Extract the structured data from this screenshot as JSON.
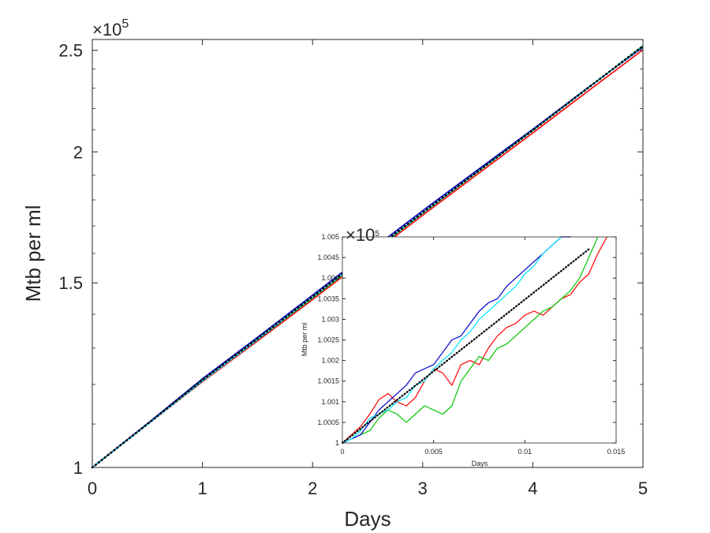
{
  "chart_data": [
    {
      "type": "line",
      "xlabel": "Days",
      "ylabel": "Mtb per ml",
      "xlim": [
        0,
        5
      ],
      "ylim": [
        100000,
        256000
      ],
      "y_scale": "log",
      "y_exponent_label": "×10",
      "y_exponent_power": "5",
      "xticks": [
        0,
        1,
        2,
        3,
        4,
        5
      ],
      "xtick_labels": [
        "0",
        "1",
        "2",
        "3",
        "4",
        "5"
      ],
      "yticks": [
        100000,
        150000,
        200000,
        250000
      ],
      "ytick_labels": [
        "1",
        "1.5",
        "2",
        "2.5"
      ],
      "grid": false,
      "series": [
        {
          "color": "#ff0000",
          "style": "solid",
          "x": [
            0,
            0.5,
            1,
            1.5,
            2,
            2.5,
            3,
            3.5,
            4,
            4.5,
            5
          ],
          "y": [
            100000,
            109900,
            120700,
            132000,
            144600,
            158600,
            174000,
            190500,
            208500,
            228500,
            250300
          ]
        },
        {
          "color": "#00c800",
          "style": "solid",
          "x": [
            0,
            0.5,
            1,
            1.5,
            2,
            2.5,
            3,
            3.5,
            4,
            4.5,
            5
          ],
          "y": [
            100000,
            110000,
            121000,
            132400,
            145100,
            159200,
            174700,
            191400,
            209600,
            230000,
            252500
          ]
        },
        {
          "color": "#0000cc",
          "style": "solid",
          "x": [
            0,
            0.5,
            1,
            1.5,
            2,
            2.5,
            3,
            3.5,
            4,
            4.5,
            5
          ],
          "y": [
            100000,
            110100,
            121500,
            133100,
            146000,
            160300,
            175800,
            192300,
            210200,
            230300,
            251700
          ]
        },
        {
          "color": "#00e5ff",
          "style": "solid",
          "x": [
            0,
            0.5,
            1,
            1.5,
            2,
            2.5,
            3,
            3.5,
            4,
            4.5,
            5
          ],
          "y": [
            100000,
            109900,
            120900,
            132400,
            145300,
            159400,
            174800,
            191500,
            209700,
            230000,
            252200
          ]
        },
        {
          "color": "#000000",
          "style": "dotted",
          "x": [
            0,
            0.5,
            1,
            1.5,
            2,
            2.5,
            3,
            3.5,
            4,
            4.5,
            5
          ],
          "y": [
            100000,
            110000,
            121200,
            132700,
            145500,
            159600,
            175000,
            191600,
            209800,
            230100,
            252300
          ]
        }
      ]
    },
    {
      "type": "line",
      "xlabel": "Days",
      "ylabel": "Mtb per ml",
      "xlim": [
        0,
        0.015
      ],
      "ylim": [
        100000,
        100500
      ],
      "y_exponent_label": "×10",
      "y_exponent_power": "5",
      "xticks": [
        0,
        0.005,
        0.01,
        0.015
      ],
      "xtick_labels": [
        "0",
        "0.005",
        "0.01",
        "0.015"
      ],
      "yticks": [
        100000,
        100050,
        100100,
        100150,
        100200,
        100250,
        100300,
        100350,
        100400,
        100450,
        100500
      ],
      "ytick_labels": [
        "1",
        "1.0005",
        "1.001",
        "1.0015",
        "1.002",
        "1.0025",
        "1.003",
        "1.0035",
        "1.004",
        "1.0045",
        "1.005"
      ],
      "grid": false,
      "series": [
        {
          "color": "#ff0000",
          "style": "solid",
          "x": [
            0,
            0.0005,
            0.001,
            0.0015,
            0.002,
            0.0025,
            0.003,
            0.0035,
            0.004,
            0.0045,
            0.005,
            0.0055,
            0.006,
            0.0065,
            0.007,
            0.0075,
            0.008,
            0.0085,
            0.009,
            0.0095,
            0.01,
            0.0105,
            0.011,
            0.0115,
            0.012,
            0.0125,
            0.013,
            0.0135,
            0.014,
            0.0145
          ],
          "y": [
            100000,
            100020,
            100040,
            100070,
            100105,
            100120,
            100100,
            100090,
            100110,
            100150,
            100180,
            100170,
            100140,
            100190,
            100200,
            100190,
            100230,
            100260,
            100280,
            100290,
            100310,
            100320,
            100310,
            100330,
            100350,
            100360,
            100390,
            100410,
            100460,
            100520
          ]
        },
        {
          "color": "#00c800",
          "style": "solid",
          "x": [
            0,
            0.0005,
            0.001,
            0.0015,
            0.002,
            0.0025,
            0.003,
            0.0035,
            0.004,
            0.0045,
            0.005,
            0.0055,
            0.006,
            0.0065,
            0.007,
            0.0075,
            0.008,
            0.0085,
            0.009,
            0.0095,
            0.01,
            0.0105,
            0.011,
            0.0115,
            0.012,
            0.0125,
            0.013,
            0.0135,
            0.014
          ],
          "y": [
            100000,
            100010,
            100020,
            100030,
            100060,
            100080,
            100070,
            100050,
            100070,
            100090,
            100080,
            100070,
            100090,
            100150,
            100180,
            100210,
            100200,
            100230,
            100240,
            100260,
            100280,
            100300,
            100320,
            100330,
            100350,
            100370,
            100400,
            100450,
            100520
          ]
        },
        {
          "color": "#0000cc",
          "style": "solid",
          "x": [
            0,
            0.0005,
            0.001,
            0.0015,
            0.002,
            0.0025,
            0.003,
            0.0035,
            0.004,
            0.0045,
            0.005,
            0.0055,
            0.006,
            0.0065,
            0.007,
            0.0075,
            0.008,
            0.0085,
            0.009,
            0.0095,
            0.01,
            0.0105,
            0.011,
            0.0115,
            0.012,
            0.0125
          ],
          "y": [
            100000,
            100010,
            100020,
            100050,
            100080,
            100100,
            100120,
            100140,
            100170,
            100180,
            100190,
            100220,
            100250,
            100260,
            100290,
            100320,
            100340,
            100350,
            100380,
            100400,
            100420,
            100440,
            100460,
            100480,
            100500,
            100520
          ]
        },
        {
          "color": "#00e5ff",
          "style": "solid",
          "x": [
            0,
            0.0005,
            0.001,
            0.0015,
            0.002,
            0.0025,
            0.003,
            0.0035,
            0.004,
            0.0045,
            0.005,
            0.0055,
            0.006,
            0.0065,
            0.007,
            0.0075,
            0.008,
            0.0085,
            0.009,
            0.0095,
            0.01,
            0.0105,
            0.011,
            0.0115,
            0.012
          ],
          "y": [
            100000,
            100010,
            100030,
            100060,
            100070,
            100080,
            100100,
            100110,
            100140,
            100150,
            100180,
            100200,
            100220,
            100250,
            100270,
            100300,
            100320,
            100340,
            100360,
            100380,
            100410,
            100430,
            100460,
            100480,
            100510
          ]
        },
        {
          "color": "#000000",
          "style": "dotted",
          "x": [
            0,
            0.0135
          ],
          "y": [
            100000,
            100470
          ]
        }
      ]
    }
  ]
}
